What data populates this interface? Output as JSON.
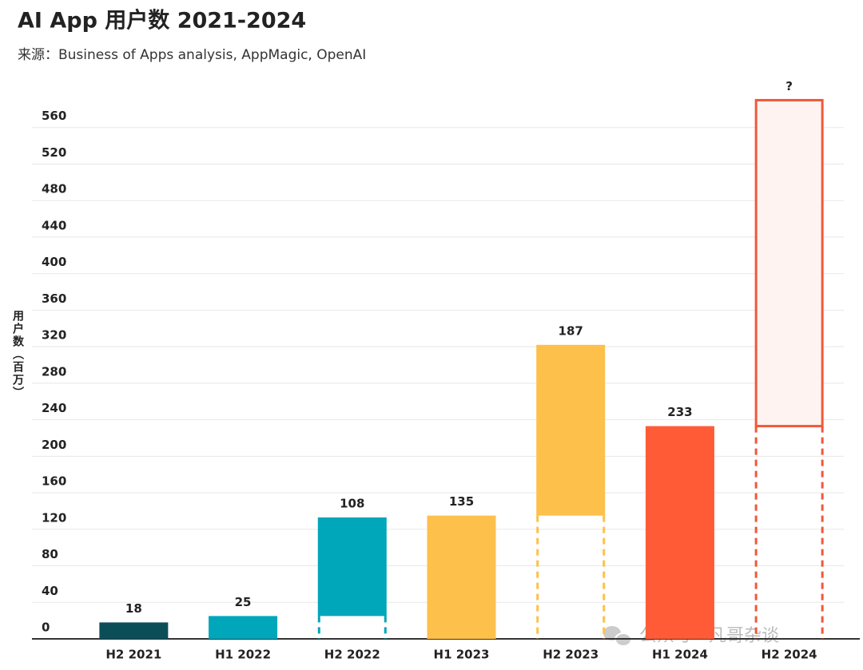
{
  "chart_data": {
    "type": "bar",
    "title": "AI App 用户数  2021-2024",
    "subtitle": "来源：Business of Apps analysis, AppMagic, OpenAI",
    "y_label": "用户数（百万）",
    "watermark": "公众号 · 凡哥杂谈",
    "categories": [
      "H2 2021",
      "H1 2022",
      "H2 2022",
      "H1 2023",
      "H2 2023",
      "H1 2024",
      "H2 2024"
    ],
    "values": [
      18,
      25,
      108,
      135,
      187,
      233,
      357
    ],
    "value_labels": [
      "18",
      "25",
      "108",
      "135",
      "187",
      "233",
      "?"
    ],
    "stack_on_previous": [
      false,
      false,
      true,
      false,
      true,
      false,
      true
    ],
    "outline_only": [
      false,
      false,
      false,
      false,
      false,
      false,
      true
    ],
    "colors": [
      "#0b4e57",
      "#00a6b9",
      "#00a6b9",
      "#fdc04b",
      "#fdc04b",
      "#ff5b37",
      "#f0583a"
    ],
    "ylim": [
      0,
      600
    ],
    "yticks": [
      0,
      40,
      80,
      120,
      160,
      200,
      240,
      280,
      320,
      360,
      400,
      440,
      480,
      520,
      560
    ],
    "grid": true
  }
}
